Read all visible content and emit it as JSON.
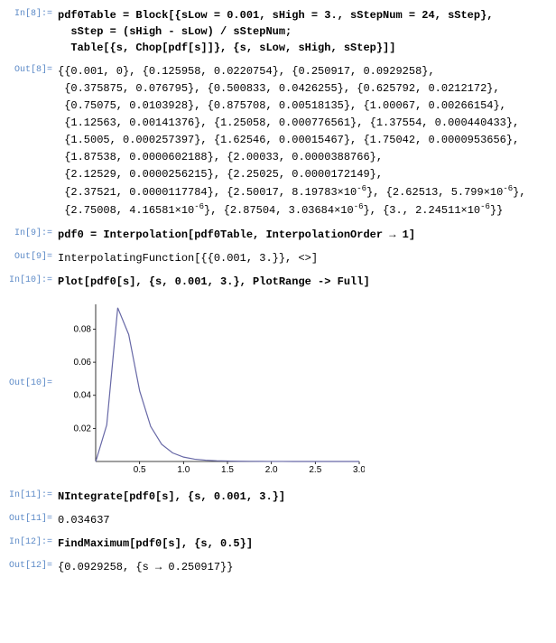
{
  "cells": {
    "in8_label": "In[8]:=",
    "in8_line1": "pdf0Table = Block[{sLow = 0.001, sHigh = 3., sStepNum = 24, sStep},",
    "in8_line2": "  sStep = (sHigh - sLow) / sStepNum;",
    "in8_line3": "  Table[{s, Chop[pdf[s]]}, {s, sLow, sHigh, sStep}]]",
    "out8_label": "Out[8]=",
    "out8_rows": [
      "{{0.001, 0}, {0.125958, 0.0220754}, {0.250917, 0.0929258},",
      " {0.375875, 0.076795}, {0.500833, 0.0426255}, {0.625792, 0.0212172},",
      " {0.75075, 0.0103928}, {0.875708, 0.00518135}, {1.00067, 0.00266154},",
      " {1.12563, 0.00141376}, {1.25058, 0.000776561}, {1.37554, 0.000440433},",
      " {1.5005, 0.000257397}, {1.62546, 0.00015467}, {1.75042, 0.0000953656},",
      " {1.87538, 0.0000602188}, {2.00033, 0.0000388766},",
      " {2.12529, 0.0000256215}, {2.25025, 0.0000172149},"
    ],
    "out8_sci1_a": " {2.37521, 0.0000117784}, {2.50017, 8.19783",
    "out8_sci1_b": "}, {2.62513, 5.799",
    "out8_sci1_c": "},",
    "out8_sci2_a": " {2.75008, 4.16581",
    "out8_sci2_b": "}, {2.87504, 3.03684",
    "out8_sci2_c": "}, {3., 2.24511",
    "out8_sci2_d": "}}",
    "exp_m6": "×10",
    "exp_m6_sup": "-6",
    "in9_label": "In[9]:=",
    "in9": "pdf0 = Interpolation[pdf0Table, InterpolationOrder → 1]",
    "out9_label": "Out[9]=",
    "out9": "InterpolatingFunction[{{0.001, 3.}}, <>]",
    "in10_label": "In[10]:=",
    "in10": "Plot[pdf0[s], {s, 0.001, 3.}, PlotRange -> Full]",
    "out10_label": "Out[10]=",
    "in11_label": "In[11]:=",
    "in11": "NIntegrate[pdf0[s], {s, 0.001, 3.}]",
    "out11_label": "Out[11]=",
    "out11": "0.034637",
    "in12_label": "In[12]:=",
    "in12": "FindMaximum[pdf0[s], {s, 0.5}]",
    "out12_label": "Out[12]=",
    "out12": "{0.0929258, {s → 0.250917}}"
  },
  "plot": {
    "x_ticks": [
      "0.5",
      "1.0",
      "1.5",
      "2.0",
      "2.5",
      "3.0"
    ],
    "y_ticks": [
      "0.02",
      "0.04",
      "0.06",
      "0.08"
    ],
    "xlim": [
      0,
      3.0
    ],
    "ylim": [
      0,
      0.095
    ],
    "line_color": "#6768a6",
    "axis_color": "#000000",
    "tick_length": 3,
    "points": [
      [
        0.001,
        0
      ],
      [
        0.125958,
        0.0220754
      ],
      [
        0.250917,
        0.0929258
      ],
      [
        0.375875,
        0.076795
      ],
      [
        0.500833,
        0.0426255
      ],
      [
        0.625792,
        0.0212172
      ],
      [
        0.75075,
        0.0103928
      ],
      [
        0.875708,
        0.00518135
      ],
      [
        1.00067,
        0.00266154
      ],
      [
        1.12563,
        0.00141376
      ],
      [
        1.25058,
        0.000776561
      ],
      [
        1.37554,
        0.000440433
      ],
      [
        1.5005,
        0.000257397
      ],
      [
        1.62546,
        0.00015467
      ],
      [
        1.75042,
        9.53656e-05
      ],
      [
        1.87538,
        6.02188e-05
      ],
      [
        2.00033,
        3.88766e-05
      ],
      [
        2.12529,
        2.56215e-05
      ],
      [
        2.25025,
        1.72149e-05
      ],
      [
        2.37521,
        1.17784e-05
      ],
      [
        2.50017,
        8.19783e-06
      ],
      [
        2.62513,
        5.799e-06
      ],
      [
        2.75008,
        4.16581e-06
      ],
      [
        2.87504,
        3.03684e-06
      ],
      [
        3.0,
        2.24511e-06
      ]
    ],
    "tick_fontsize": 10
  }
}
